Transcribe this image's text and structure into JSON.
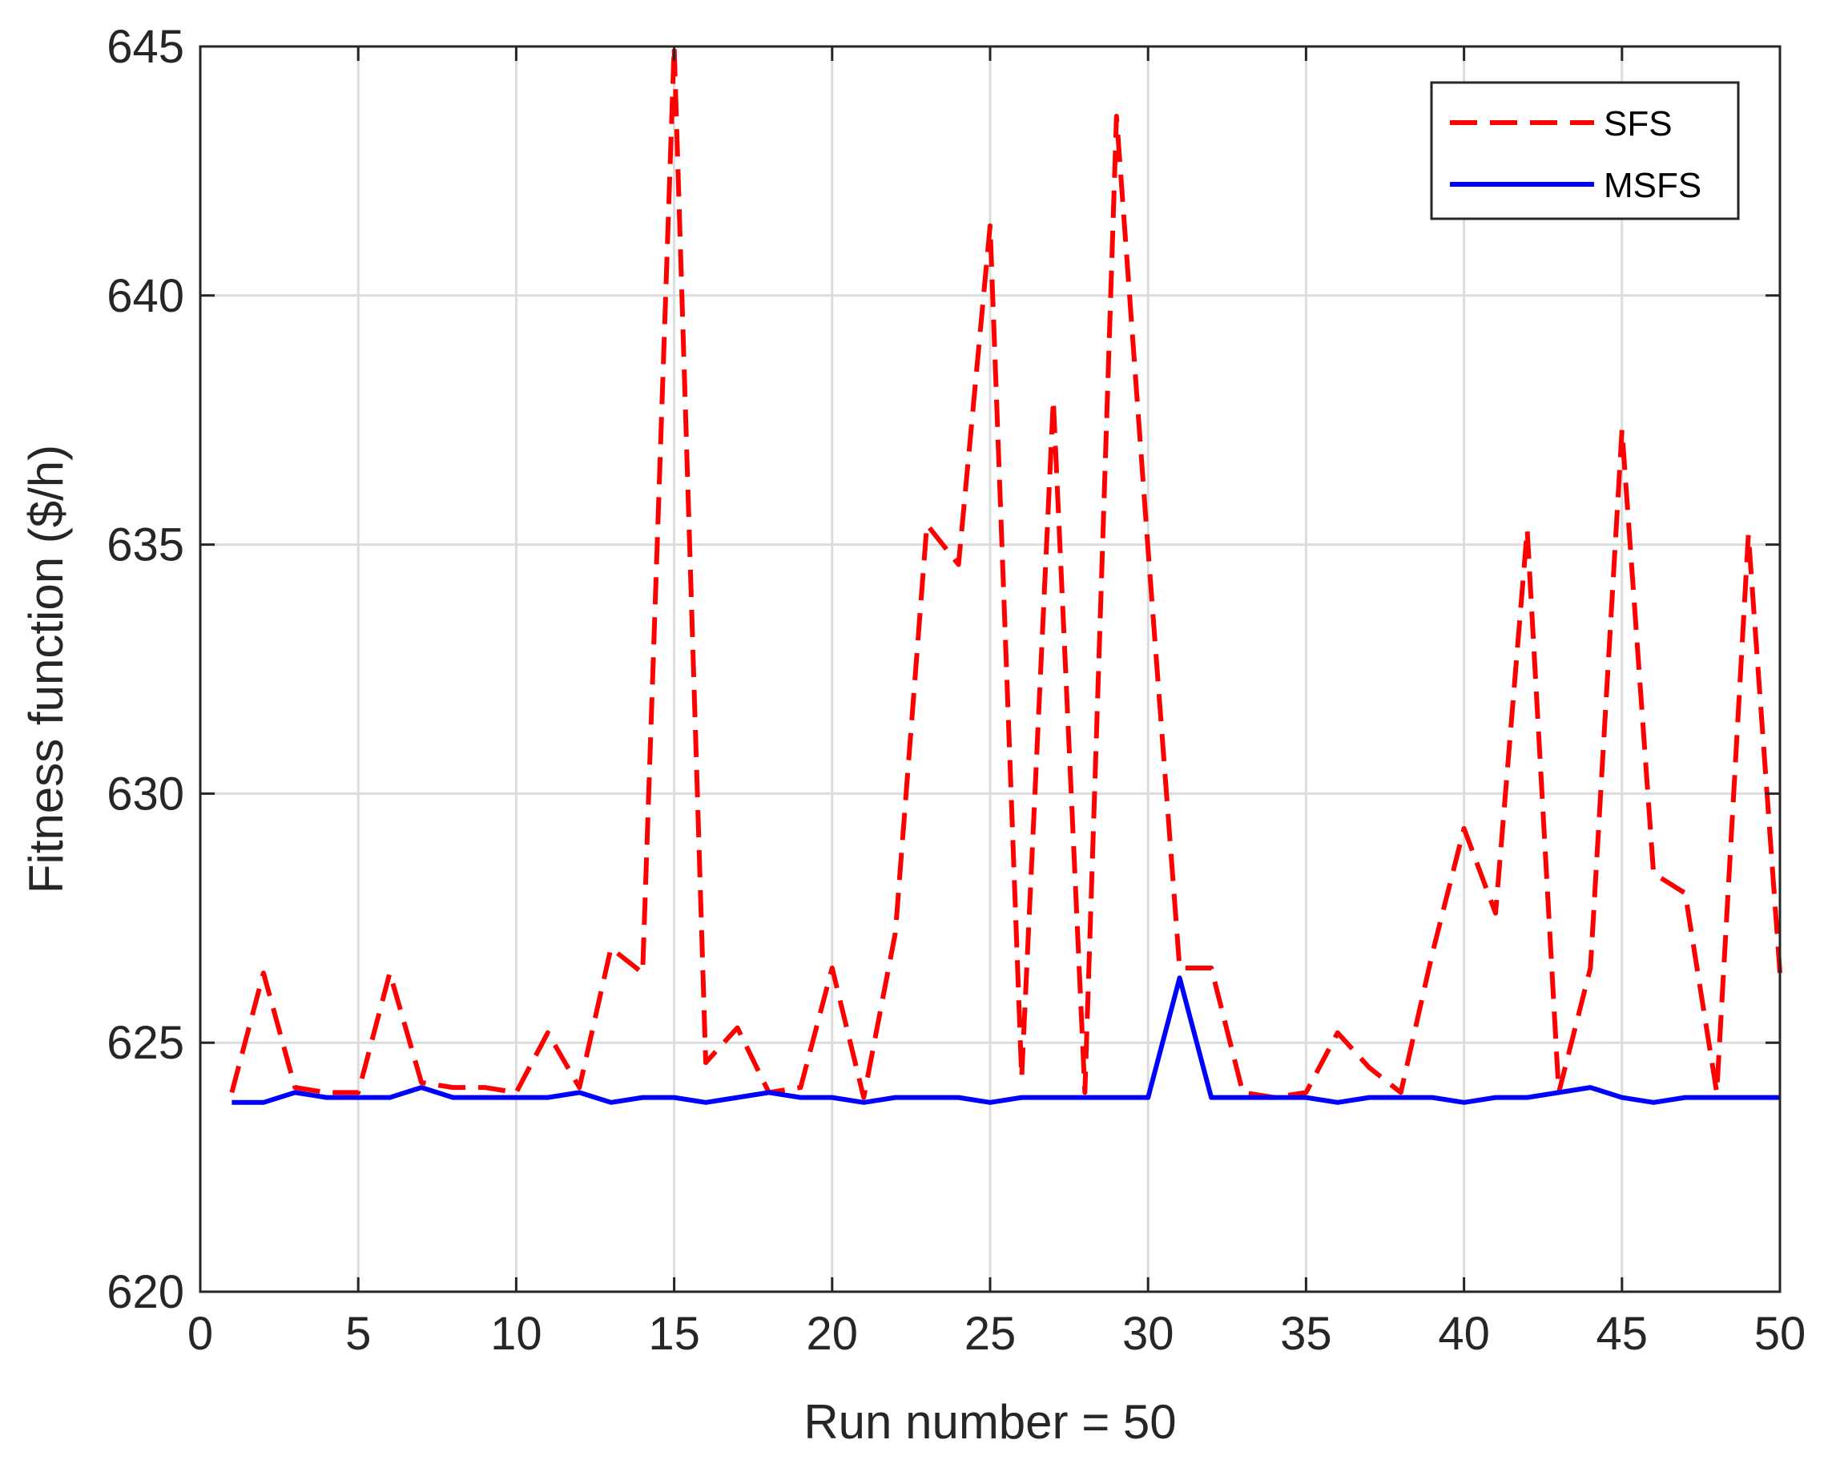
{
  "chart_data": {
    "type": "line",
    "xlabel": "Run number = 50",
    "ylabel": "Fitness function ($/h)",
    "xlim": [
      0,
      50
    ],
    "ylim": [
      620,
      645
    ],
    "xticks": [
      0,
      5,
      10,
      15,
      20,
      25,
      30,
      35,
      40,
      45,
      50
    ],
    "yticks": [
      620,
      625,
      630,
      635,
      640,
      645
    ],
    "grid": true,
    "legend_position": "top-right",
    "x": [
      1,
      2,
      3,
      4,
      5,
      6,
      7,
      8,
      9,
      10,
      11,
      12,
      13,
      14,
      15,
      16,
      17,
      18,
      19,
      20,
      21,
      22,
      23,
      24,
      25,
      26,
      27,
      28,
      29,
      30,
      31,
      32,
      33,
      34,
      35,
      36,
      37,
      38,
      39,
      40,
      41,
      42,
      43,
      44,
      45,
      46,
      47,
      48,
      49,
      50
    ],
    "series": [
      {
        "name": "SFS",
        "color": "#ff0000",
        "dash": true,
        "values": [
          624.0,
          626.4,
          624.1,
          624.0,
          624.0,
          626.4,
          624.2,
          624.1,
          624.1,
          624.0,
          625.2,
          624.1,
          626.9,
          626.4,
          645.0,
          624.6,
          625.3,
          624.0,
          624.1,
          626.5,
          623.9,
          627.2,
          635.4,
          634.6,
          641.4,
          624.3,
          637.9,
          624.0,
          643.6,
          634.9,
          626.5,
          626.5,
          624.0,
          623.9,
          624.0,
          625.2,
          624.5,
          624.0,
          626.8,
          629.3,
          627.6,
          635.3,
          624.0,
          626.5,
          637.3,
          628.4,
          628.0,
          624.0,
          635.2,
          626.4
        ]
      },
      {
        "name": "MSFS",
        "color": "#0000ff",
        "dash": false,
        "values": [
          623.8,
          623.8,
          624.0,
          623.9,
          623.9,
          623.9,
          624.1,
          623.9,
          623.9,
          623.9,
          623.9,
          624.0,
          623.8,
          623.9,
          623.9,
          623.8,
          623.9,
          624.0,
          623.9,
          623.9,
          623.8,
          623.9,
          623.9,
          623.9,
          623.8,
          623.9,
          623.9,
          623.9,
          623.9,
          623.9,
          626.3,
          623.9,
          623.9,
          623.9,
          623.9,
          623.8,
          623.9,
          623.9,
          623.9,
          623.8,
          623.9,
          623.9,
          624.0,
          624.1,
          623.9,
          623.8,
          623.9,
          623.9,
          623.9,
          623.9
        ]
      }
    ]
  }
}
